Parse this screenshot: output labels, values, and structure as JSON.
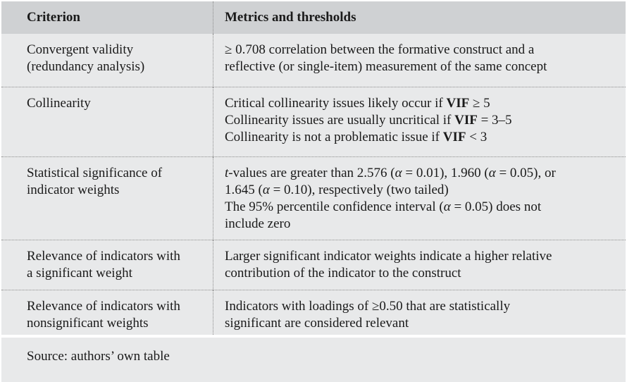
{
  "header": {
    "criterion": "Criterion",
    "metrics": "Metrics and thresholds"
  },
  "rows": [
    {
      "criterion": [
        "Convergent validity",
        "(redundancy analysis)"
      ],
      "metrics": [
        "≥ 0.708 correlation between the formative construct and a",
        "reflective (or single-item) measurement of the same concept"
      ]
    },
    {
      "criterion": [
        "Collinearity"
      ],
      "metrics_vif": [
        {
          "pre": "Critical collinearity issues likely occur if ",
          "bold": "VIF",
          "post": " ≥ 5"
        },
        {
          "pre": "Collinearity issues are usually uncritical if ",
          "bold": "VIF",
          "post": " = 3–5"
        },
        {
          "pre": "Collinearity is not a problematic issue if ",
          "bold": "VIF",
          "post": " < 3"
        }
      ]
    },
    {
      "criterion": [
        "Statistical significance of",
        "indicator weights"
      ],
      "metrics_sig": {
        "l1_t": "t",
        "l1_a": "-values are greater than 2.576 (",
        "l1_b": " = 0.01), 1.960 (",
        "l1_c": " = 0.05), or",
        "l2_a": "1.645 (",
        "l2_b": " = 0.10), respectively (two tailed)",
        "l3_a": "The 95% percentile confidence interval (",
        "l3_b": " = 0.05) does not",
        "l4": "include zero",
        "alpha": "α"
      }
    },
    {
      "criterion": [
        "Relevance of indicators with",
        "a significant weight"
      ],
      "metrics": [
        "Larger significant indicator weights indicate a higher relative",
        "contribution of the indicator to the construct"
      ]
    },
    {
      "criterion": [
        "Relevance of indicators with",
        "nonsignificant weights"
      ],
      "metrics": [
        "Indicators with loadings of ≥0.50 that are statistically",
        "significant are considered relevant"
      ]
    }
  ],
  "source": "Source: authors’ own table"
}
